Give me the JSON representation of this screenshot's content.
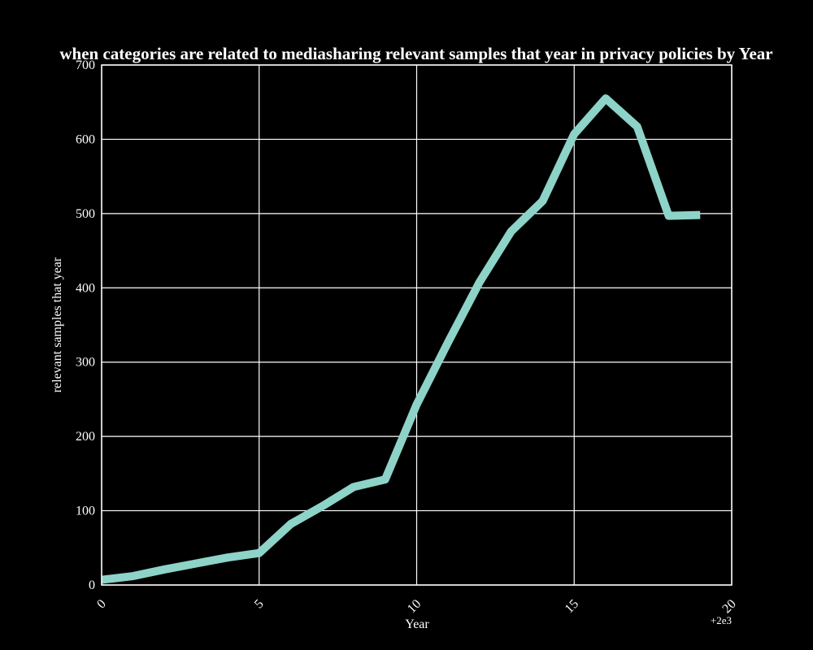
{
  "chart_data": {
    "type": "line",
    "title": "when categories are related to mediasharing relevant samples that year in privacy policies by Year",
    "xlabel": "Year",
    "ylabel": "relevant samples that year",
    "x_offset_label": "+2e3",
    "xlim": [
      0,
      20
    ],
    "ylim": [
      0,
      700
    ],
    "x_ticks": [
      "0",
      "5",
      "10",
      "15",
      "20"
    ],
    "y_ticks": [
      "0",
      "100",
      "200",
      "300",
      "400",
      "500",
      "600",
      "700"
    ],
    "grid": true,
    "x": [
      0,
      1,
      2,
      3,
      4,
      5,
      6,
      7,
      8,
      9,
      10,
      11,
      12,
      13,
      14,
      15,
      16,
      17,
      18,
      19
    ],
    "series": [
      {
        "values": [
          7,
          12,
          21,
          29,
          37,
          43,
          82,
          106,
          132,
          142,
          243,
          327,
          408,
          476,
          517,
          607,
          655,
          617,
          497,
          498
        ],
        "color": "#8dd3c7"
      }
    ]
  }
}
